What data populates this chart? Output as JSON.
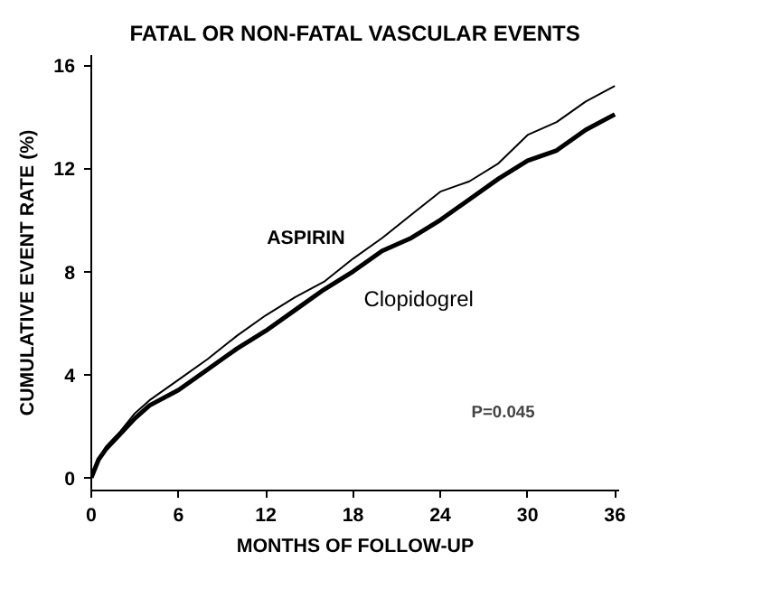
{
  "chart_data": {
    "type": "line",
    "title": "FATAL OR NON-FATAL VASCULAR EVENTS",
    "xlabel": "MONTHS OF FOLLOW-UP",
    "ylabel": "CUMULATIVE EVENT RATE (%)",
    "x": [
      0,
      0.5,
      1,
      2,
      3,
      4,
      6,
      8,
      10,
      12,
      14,
      16,
      18,
      20,
      22,
      24,
      26,
      28,
      30,
      32,
      34,
      36
    ],
    "series": [
      {
        "name": "ASPIRIN",
        "color": "#000000",
        "values": [
          0,
          0.7,
          1.2,
          1.8,
          2.5,
          3.0,
          3.8,
          4.6,
          5.5,
          6.3,
          7.0,
          7.6,
          8.5,
          9.3,
          10.2,
          11.1,
          11.5,
          12.2,
          13.3,
          13.8,
          14.6,
          15.2
        ]
      },
      {
        "name": "Clopidogrel",
        "color": "#000000",
        "values": [
          0,
          0.7,
          1.1,
          1.7,
          2.3,
          2.8,
          3.4,
          4.2,
          5.0,
          5.7,
          6.5,
          7.3,
          8.0,
          8.8,
          9.3,
          10.0,
          10.8,
          11.6,
          12.3,
          12.7,
          13.5,
          14.1
        ]
      }
    ],
    "xlim": [
      0,
      36.3
    ],
    "ylim": [
      -0.5,
      16.4
    ],
    "xticks": [
      0,
      6,
      12,
      18,
      24,
      30,
      36
    ],
    "yticks": [
      0,
      4,
      8,
      12,
      16
    ],
    "annotations": [
      "P=0.045"
    ],
    "grid": false,
    "marker": "none",
    "line_style": "solid"
  }
}
